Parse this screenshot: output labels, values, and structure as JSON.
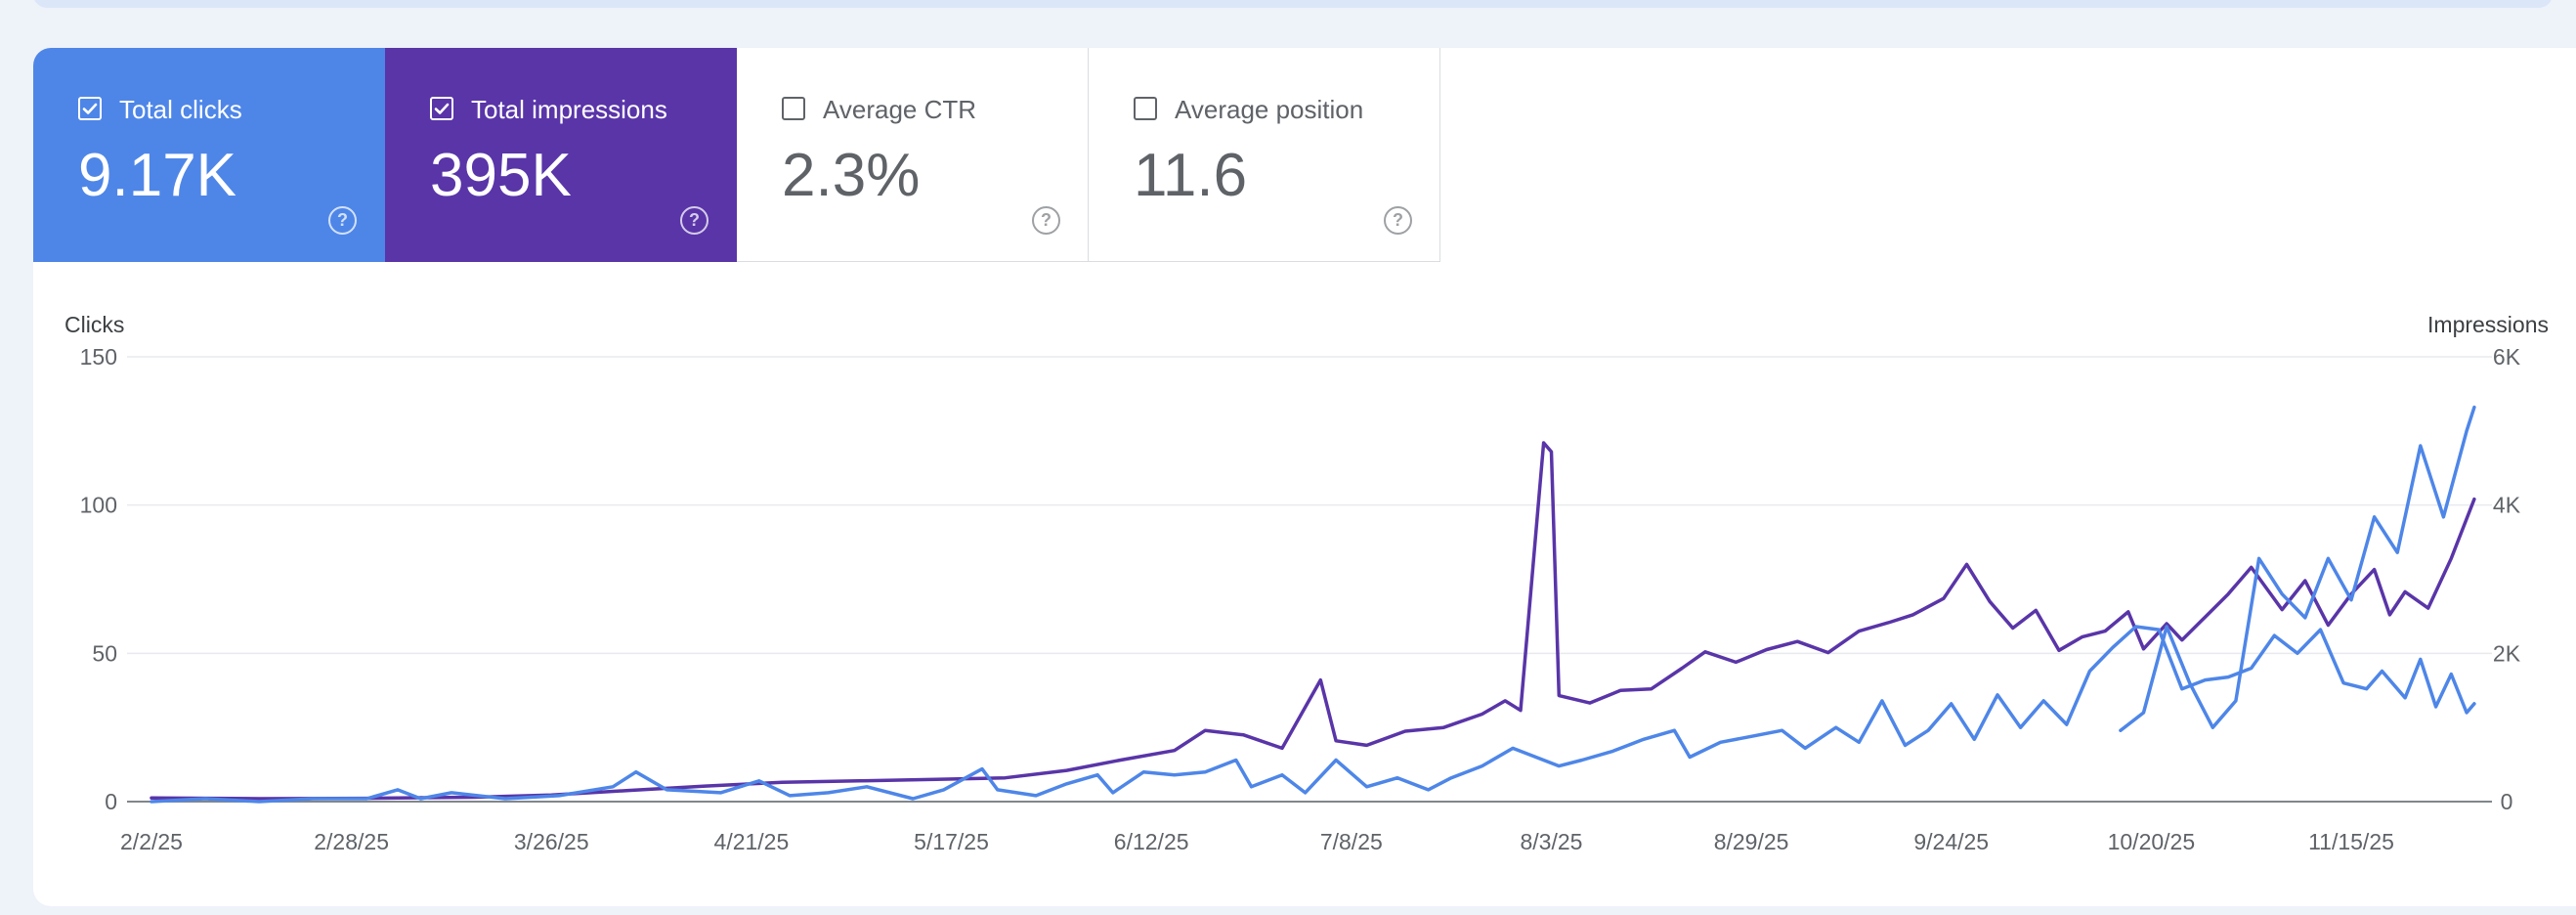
{
  "tiles": [
    {
      "label": "Total clicks",
      "value": "9.17K",
      "checked": true,
      "color": "#4e86e8"
    },
    {
      "label": "Total impressions",
      "value": "395K",
      "checked": true,
      "color": "#5935a8"
    },
    {
      "label": "Average CTR",
      "value": "2.3%",
      "checked": false,
      "color": "#ffffff"
    },
    {
      "label": "Average position",
      "value": "11.6",
      "checked": false,
      "color": "#ffffff"
    }
  ],
  "help_glyph": "?",
  "chart_data": {
    "type": "line",
    "left_axis": {
      "title": "Clicks",
      "min": 0,
      "max": 150,
      "ticks": [
        "0",
        "50",
        "100",
        "150"
      ]
    },
    "right_axis": {
      "title": "Impressions",
      "min": 0,
      "max": 6000,
      "ticks": [
        "0",
        "2K",
        "4K",
        "6K"
      ]
    },
    "x_tick_labels": [
      "2/2/25",
      "2/28/25",
      "3/26/25",
      "4/21/25",
      "5/17/25",
      "6/12/25",
      "7/8/25",
      "8/3/25",
      "8/29/25",
      "9/24/25",
      "10/20/25",
      "11/15/25"
    ],
    "x_start": "2025-02-02",
    "x_end": "2025-12-01",
    "grid": true,
    "series": [
      {
        "name": "Total clicks",
        "axis": "left",
        "color": "#4e86e8",
        "points": [
          [
            "2025-02-02",
            0
          ],
          [
            "2025-02-09",
            1
          ],
          [
            "2025-02-16",
            0
          ],
          [
            "2025-02-23",
            1
          ],
          [
            "2025-03-02",
            1
          ],
          [
            "2025-03-06",
            4
          ],
          [
            "2025-03-09",
            1
          ],
          [
            "2025-03-13",
            3
          ],
          [
            "2025-03-20",
            1
          ],
          [
            "2025-03-27",
            2
          ],
          [
            "2025-04-03",
            5
          ],
          [
            "2025-04-06",
            10
          ],
          [
            "2025-04-10",
            4
          ],
          [
            "2025-04-17",
            3
          ],
          [
            "2025-04-22",
            7
          ],
          [
            "2025-04-26",
            2
          ],
          [
            "2025-05-01",
            3
          ],
          [
            "2025-05-06",
            5
          ],
          [
            "2025-05-12",
            1
          ],
          [
            "2025-05-16",
            4
          ],
          [
            "2025-05-21",
            11
          ],
          [
            "2025-05-23",
            4
          ],
          [
            "2025-05-28",
            2
          ],
          [
            "2025-06-01",
            6
          ],
          [
            "2025-06-05",
            9
          ],
          [
            "2025-06-07",
            3
          ],
          [
            "2025-06-11",
            10
          ],
          [
            "2025-06-15",
            9
          ],
          [
            "2025-06-19",
            10
          ],
          [
            "2025-06-23",
            14
          ],
          [
            "2025-06-25",
            5
          ],
          [
            "2025-06-29",
            9
          ],
          [
            "2025-07-02",
            3
          ],
          [
            "2025-07-06",
            14
          ],
          [
            "2025-07-10",
            5
          ],
          [
            "2025-07-14",
            8
          ],
          [
            "2025-07-18",
            4
          ],
          [
            "2025-07-21",
            8
          ],
          [
            "2025-07-25",
            12
          ],
          [
            "2025-07-29",
            18
          ],
          [
            "2025-08-01",
            15
          ],
          [
            "2025-08-04",
            12
          ],
          [
            "2025-08-07",
            14
          ],
          [
            "2025-08-11",
            17
          ],
          [
            "2025-08-15",
            21
          ],
          [
            "2025-08-19",
            24
          ],
          [
            "2025-08-21",
            15
          ],
          [
            "2025-08-25",
            20
          ],
          [
            "2025-08-29",
            22
          ],
          [
            "2025-09-02",
            24
          ],
          [
            "2025-09-05",
            18
          ],
          [
            "2025-09-09",
            25
          ],
          [
            "2025-09-12",
            20
          ],
          [
            "2025-09-15",
            34
          ],
          [
            "2025-09-18",
            19
          ],
          [
            "2025-09-21",
            24
          ],
          [
            "2025-09-24",
            33
          ],
          [
            "2025-09-27",
            21
          ],
          [
            "2025-09-30",
            36
          ],
          [
            "2025-10-03",
            25
          ],
          [
            "2025-10-06",
            34
          ],
          [
            "2025-10-09",
            26
          ],
          [
            "2025-10-12",
            44
          ],
          [
            "2025-10-15",
            52
          ],
          [
            "2025-10-18",
            59
          ],
          [
            "2025-10-21",
            58
          ],
          [
            "2025-10-24",
            38
          ],
          [
            "2025-10-27",
            41
          ],
          [
            "2025-10-30",
            42
          ],
          [
            "2025-11-02",
            45
          ],
          [
            "2025-11-05",
            56
          ],
          [
            "2025-11-08",
            50
          ],
          [
            "2025-11-11",
            58
          ],
          [
            "2025-11-14",
            40
          ],
          [
            "2025-11-17",
            38
          ],
          [
            "2025-11-19",
            44
          ],
          [
            "2025-11-22",
            35
          ],
          [
            "2025-11-24",
            48
          ],
          [
            "2025-11-26",
            32
          ],
          [
            "2025-11-28",
            43
          ],
          [
            "2025-11-30",
            30
          ],
          [
            "2025-12-01",
            33
          ],
          [
            "2025-10-16",
            24
          ],
          [
            "2025-10-19",
            30
          ],
          [
            "2025-10-22",
            59
          ],
          [
            "2025-10-25",
            40
          ],
          [
            "2025-10-28",
            25
          ],
          [
            "2025-10-31",
            34
          ],
          [
            "2025-11-03",
            82
          ],
          [
            "2025-11-06",
            70
          ],
          [
            "2025-11-09",
            62
          ],
          [
            "2025-11-12",
            82
          ],
          [
            "2025-11-15",
            68
          ],
          [
            "2025-11-18",
            96
          ],
          [
            "2025-11-21",
            84
          ],
          [
            "2025-11-24",
            120
          ],
          [
            "2025-11-27",
            96
          ],
          [
            "2025-11-30",
            125
          ],
          [
            "2025-12-01",
            133
          ]
        ]
      },
      {
        "name": "Total impressions",
        "axis": "right",
        "color": "#5935a8",
        "points": [
          [
            "2025-02-02",
            50
          ],
          [
            "2025-02-16",
            40
          ],
          [
            "2025-03-02",
            45
          ],
          [
            "2025-03-16",
            60
          ],
          [
            "2025-03-26",
            90
          ],
          [
            "2025-04-05",
            150
          ],
          [
            "2025-04-15",
            210
          ],
          [
            "2025-04-25",
            260
          ],
          [
            "2025-05-05",
            280
          ],
          [
            "2025-05-15",
            300
          ],
          [
            "2025-05-24",
            320
          ],
          [
            "2025-06-01",
            420
          ],
          [
            "2025-06-08",
            560
          ],
          [
            "2025-06-15",
            690
          ],
          [
            "2025-06-19",
            960
          ],
          [
            "2025-06-24",
            900
          ],
          [
            "2025-06-29",
            720
          ],
          [
            "2025-07-04",
            1640
          ],
          [
            "2025-07-06",
            820
          ],
          [
            "2025-07-10",
            760
          ],
          [
            "2025-07-15",
            950
          ],
          [
            "2025-07-20",
            1000
          ],
          [
            "2025-07-25",
            1180
          ],
          [
            "2025-07-28",
            1360
          ],
          [
            "2025-07-30",
            1230
          ],
          [
            "2025-08-02",
            4840
          ],
          [
            "2025-08-03",
            4720
          ],
          [
            "2025-08-04",
            1430
          ],
          [
            "2025-08-08",
            1330
          ],
          [
            "2025-08-12",
            1500
          ],
          [
            "2025-08-16",
            1520
          ],
          [
            "2025-08-20",
            1800
          ],
          [
            "2025-08-23",
            2020
          ],
          [
            "2025-08-27",
            1880
          ],
          [
            "2025-08-31",
            2050
          ],
          [
            "2025-09-04",
            2160
          ],
          [
            "2025-09-08",
            2010
          ],
          [
            "2025-09-12",
            2300
          ],
          [
            "2025-09-16",
            2420
          ],
          [
            "2025-09-19",
            2520
          ],
          [
            "2025-09-23",
            2740
          ],
          [
            "2025-09-26",
            3200
          ],
          [
            "2025-09-29",
            2700
          ],
          [
            "2025-10-02",
            2340
          ],
          [
            "2025-10-05",
            2580
          ],
          [
            "2025-10-08",
            2040
          ],
          [
            "2025-10-11",
            2220
          ],
          [
            "2025-10-14",
            2300
          ],
          [
            "2025-10-17",
            2560
          ],
          [
            "2025-10-19",
            2060
          ],
          [
            "2025-10-22",
            2400
          ],
          [
            "2025-10-24",
            2180
          ],
          [
            "2025-10-27",
            2490
          ],
          [
            "2025-10-30",
            2800
          ],
          [
            "2025-11-02",
            3160
          ],
          [
            "2025-11-06",
            2590
          ],
          [
            "2025-11-09",
            2980
          ],
          [
            "2025-11-12",
            2380
          ],
          [
            "2025-11-15",
            2800
          ],
          [
            "2025-11-18",
            3130
          ],
          [
            "2025-11-20",
            2520
          ],
          [
            "2025-11-22",
            2830
          ],
          [
            "2025-11-25",
            2610
          ],
          [
            "2025-11-28",
            3280
          ],
          [
            "2025-12-01",
            4080
          ]
        ]
      }
    ]
  }
}
